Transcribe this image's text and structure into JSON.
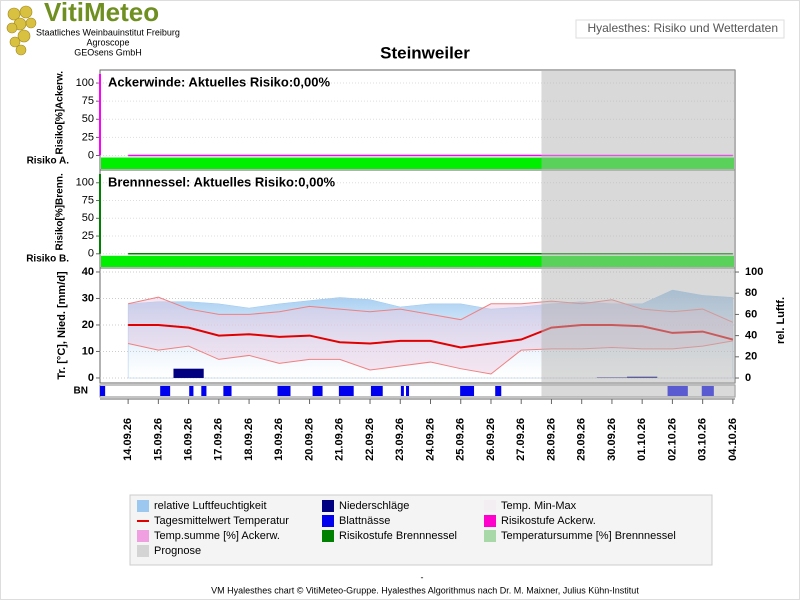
{
  "header": {
    "logo": "VitiMeteo",
    "institutes": [
      "Staatliches Weinbauinstitut Freiburg",
      "Agroscope",
      "GEOsens GmbH"
    ],
    "page_title": "Hyalesthes: Risiko und Wetterdaten"
  },
  "chart_title": "Steinweiler",
  "chart_data": [
    {
      "type": "risk",
      "title": "Ackerwinde: Aktuelles Risiko:0,00%",
      "ylabel": "Risiko[%]Ackerw.",
      "level_label": "Risiko A.",
      "color": "#ff00ff",
      "level_color": "#00ee00",
      "ylim": [
        -20,
        118
      ],
      "yticks": [
        0,
        25,
        50,
        75,
        100
      ],
      "values": [
        0,
        0,
        0,
        0,
        0,
        0,
        0,
        0,
        0,
        0,
        0,
        0,
        0,
        0,
        0,
        0,
        0,
        0,
        0,
        0,
        0
      ]
    },
    {
      "type": "risk",
      "title": "Brennnessel: Aktuelles Risiko:0,00%",
      "ylabel": "Risiko[%]Brenn.",
      "level_label": "Risiko B.",
      "color": "#008000",
      "level_color": "#00ee00",
      "ylim": [
        -20,
        118
      ],
      "yticks": [
        0,
        25,
        50,
        75,
        100
      ],
      "values": [
        0,
        0,
        0,
        0,
        0,
        0,
        0,
        0,
        0,
        0,
        0,
        0,
        0,
        0,
        0,
        0,
        0,
        0,
        0,
        0,
        0
      ]
    },
    {
      "type": "weather",
      "ylabel": "Tr. [°C], Nied. [mm/d]",
      "y2label": "rel. Luftf.",
      "bn_label": "BN",
      "categories": [
        "14.09.26",
        "15.09.26",
        "16.09.26",
        "17.09.26",
        "18.09.26",
        "19.09.26",
        "20.09.26",
        "21.09.26",
        "22.09.26",
        "23.09.26",
        "24.09.26",
        "25.09.26",
        "26.09.26",
        "27.09.26",
        "28.09.26",
        "29.09.26",
        "30.09.26",
        "01.10.26",
        "02.10.26",
        "03.10.26",
        "04.10.26"
      ],
      "ylim": [
        -1.9,
        41.5
      ],
      "yticks": [
        0,
        10,
        20,
        30,
        40
      ],
      "y2lim": [
        -4.7,
        103.8
      ],
      "y2ticks": [
        0,
        20,
        40,
        60,
        80,
        100
      ],
      "humidity": [
        70,
        72,
        72,
        70,
        66,
        70,
        73,
        76,
        74,
        67,
        70,
        70,
        65,
        67,
        70,
        72,
        70,
        70,
        83,
        78,
        76
      ],
      "temp_mean": [
        20,
        20,
        19,
        16,
        16.5,
        15.5,
        16,
        13.5,
        13,
        14,
        14,
        11.5,
        13,
        14.5,
        19,
        20,
        20,
        19.5,
        17,
        17.5,
        14.5
      ],
      "temp_max": [
        28,
        30.5,
        26,
        24,
        24,
        25,
        27,
        26,
        25,
        26,
        24,
        22,
        28,
        28,
        29,
        28,
        29.5,
        26,
        25,
        26,
        21
      ],
      "temp_min": [
        13,
        10.5,
        12,
        7,
        8.5,
        5.5,
        7,
        7,
        3,
        4.5,
        6,
        3.5,
        1.5,
        10.5,
        11,
        11,
        11.5,
        11,
        11,
        12,
        14
      ],
      "precipitation": [
        0,
        0,
        3.5,
        0,
        0,
        0,
        0,
        0,
        0,
        0,
        0,
        0,
        0,
        0,
        0,
        0,
        0.2,
        0.5,
        0,
        0,
        0
      ],
      "leaf_wetness": [
        [
          -0.93,
          -0.76
        ],
        [
          1.06,
          1.39
        ],
        [
          2.02,
          2.16
        ],
        [
          2.42,
          2.59
        ],
        [
          3.15,
          3.42
        ],
        [
          4.94,
          5.37
        ],
        [
          6.1,
          6.43
        ],
        [
          6.97,
          7.46
        ],
        [
          8.03,
          8.42
        ],
        [
          9.02,
          9.12
        ],
        [
          9.19,
          9.29
        ],
        [
          10.98,
          11.44
        ],
        [
          12.14,
          12.34
        ],
        [
          17.84,
          18.51
        ],
        [
          18.97,
          19.37
        ]
      ],
      "prognose_from": 13.67,
      "colors": {
        "humidity": "#9cc8f0",
        "temp_mean": "#e00000",
        "temp_range": "#f08080",
        "precipitation": "#000080",
        "leaf_wetness": "#0000ee",
        "prognose": "#b4b4b4"
      }
    }
  ],
  "legend": [
    {
      "name": "relative Luftfeuchtigkeit",
      "color": "#9cc8f0",
      "symbol": "rect"
    },
    {
      "name": "Tagesmittelwert Temperatur",
      "color": "#e00000",
      "symbol": "line"
    },
    {
      "name": "Temp.summe [%] Ackerw.",
      "color": "#f0a0e0",
      "symbol": "rect"
    },
    {
      "name": "Prognose",
      "color": "#d4d4d4",
      "symbol": "rect"
    },
    {
      "name": "Niederschläge",
      "color": "#000080",
      "symbol": "rect"
    },
    {
      "name": "Blattnässe",
      "color": "#0000ee",
      "symbol": "rect"
    },
    {
      "name": "Risikostufe Brennnessel",
      "color": "#008000",
      "symbol": "rect"
    },
    {
      "name": "Temp. Min-Max",
      "color": "#f2eef2",
      "symbol": "rect"
    },
    {
      "name": "Risikostufe Ackerw.",
      "color": "#ff00cc",
      "symbol": "rect"
    },
    {
      "name": "Temperatursumme [%] Brennnessel",
      "color": "#a8d8a8",
      "symbol": "rect"
    }
  ],
  "footer": {
    "dash": "-",
    "credit": "VM Hyalesthes chart © VitiMeteo-Gruppe. Hyalesthes Algorithmus nach Dr. M. Maixner, Julius Kühn-Institut"
  }
}
